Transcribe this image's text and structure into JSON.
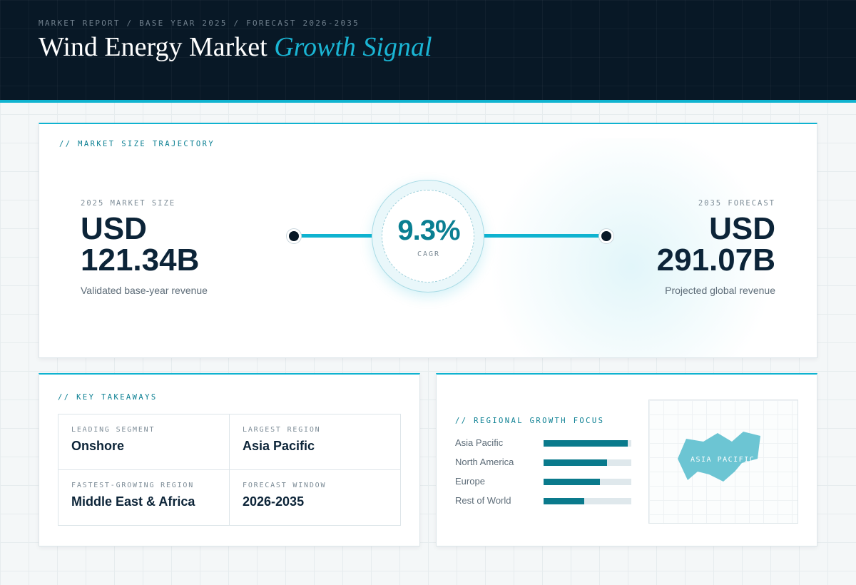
{
  "header": {
    "breadcrumb": "MARKET REPORT / BASE YEAR 2025 / FORECAST 2026-2035",
    "title_main": "Wind Energy Market",
    "title_accent": "Growth Signal"
  },
  "trajectory": {
    "label": "// MARKET SIZE TRAJECTORY",
    "base": {
      "kicker": "2025 MARKET SIZE",
      "currency": "USD",
      "value": "121.34B",
      "caption": "Validated base-year revenue"
    },
    "forecast": {
      "kicker": "2035 FORECAST",
      "currency": "USD",
      "value": "291.07B",
      "caption": "Projected global revenue"
    },
    "cagr": {
      "value": "9.3%",
      "label": "CAGR"
    }
  },
  "takeaways": {
    "label": "// KEY TAKEAWAYS",
    "items": [
      {
        "key": "LEADING SEGMENT",
        "value": "Onshore"
      },
      {
        "key": "LARGEST REGION",
        "value": "Asia Pacific"
      },
      {
        "key": "FASTEST-GROWING REGION",
        "value": "Middle East & Africa"
      },
      {
        "key": "FORECAST WINDOW",
        "value": "2026-2035"
      }
    ]
  },
  "regional": {
    "label": "// REGIONAL GROWTH FOCUS",
    "bars": [
      {
        "name": "Asia Pacific",
        "level": 0.96
      },
      {
        "name": "North America",
        "level": 0.72
      },
      {
        "name": "Europe",
        "level": 0.64
      },
      {
        "name": "Rest of World",
        "level": 0.46
      }
    ],
    "map_label": "ASIA PACIFIC",
    "colors": {
      "bar": "#0a7a8c",
      "track": "#dfe8ec",
      "region_shape": "#6cc5d3"
    }
  }
}
